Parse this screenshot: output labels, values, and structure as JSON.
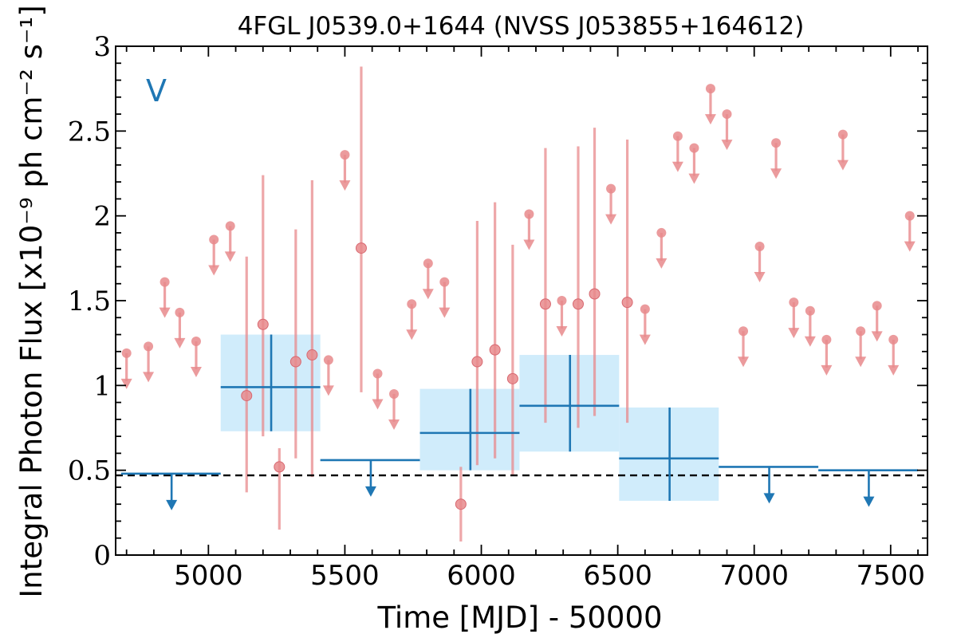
{
  "chart_data": {
    "type": "scatter",
    "title": "4FGL J0539.0+1644 (NVSS J053855+164612)",
    "xlabel": "Time [MJD] - 50000",
    "ylabel": "Integral Photon Flux [x10⁻⁹ ph cm⁻² s⁻¹]",
    "xlim": [
      4660,
      7635
    ],
    "ylim": [
      0,
      3
    ],
    "xticks": [
      5000,
      5500,
      6000,
      6500,
      7000,
      7500
    ],
    "xtick_labels": [
      "5000",
      "5500",
      "6000",
      "6500",
      "7000",
      "7500"
    ],
    "yticks": [
      0,
      0.5,
      1,
      1.5,
      2,
      2.5,
      3
    ],
    "ytick_labels": [
      "0",
      "0.5",
      "1",
      "1.5",
      "2",
      "2.5",
      "3"
    ],
    "annotation": "V",
    "reference_line": 0.47,
    "colors": {
      "short_bins": "#e8898c",
      "long_bins": "#1f77b4",
      "long_bin_box": "#d0ecfb",
      "reference_line": "#000000"
    },
    "short_bins_detections": [
      {
        "x": 5140,
        "y": 0.94,
        "ylo": 0.37,
        "yhi": 1.76
      },
      {
        "x": 5200,
        "y": 1.36,
        "ylo": 0.7,
        "yhi": 2.24
      },
      {
        "x": 5260,
        "y": 0.52,
        "ylo": 0.15,
        "yhi": 0.63
      },
      {
        "x": 5320,
        "y": 1.14,
        "ylo": 0.57,
        "yhi": 1.92
      },
      {
        "x": 5380,
        "y": 1.18,
        "ylo": 0.46,
        "yhi": 2.21
      },
      {
        "x": 5560,
        "y": 1.81,
        "ylo": 0.96,
        "yhi": 2.88
      },
      {
        "x": 5925,
        "y": 0.3,
        "ylo": 0.08,
        "yhi": 0.52
      },
      {
        "x": 5985,
        "y": 1.14,
        "ylo": 0.53,
        "yhi": 1.97
      },
      {
        "x": 6050,
        "y": 1.21,
        "ylo": 0.57,
        "yhi": 2.08
      },
      {
        "x": 6115,
        "y": 1.04,
        "ylo": 0.47,
        "yhi": 1.83
      },
      {
        "x": 6235,
        "y": 1.48,
        "ylo": 0.78,
        "yhi": 2.4
      },
      {
        "x": 6355,
        "y": 1.48,
        "ylo": 0.75,
        "yhi": 2.41
      },
      {
        "x": 6415,
        "y": 1.54,
        "ylo": 0.82,
        "yhi": 2.52
      },
      {
        "x": 6535,
        "y": 1.49,
        "ylo": 0.78,
        "yhi": 2.45
      }
    ],
    "short_bins_upper_limits": [
      {
        "x": 4700,
        "y": 1.19
      },
      {
        "x": 4780,
        "y": 1.23
      },
      {
        "x": 4840,
        "y": 1.61
      },
      {
        "x": 4895,
        "y": 1.43
      },
      {
        "x": 4955,
        "y": 1.26
      },
      {
        "x": 5020,
        "y": 1.86
      },
      {
        "x": 5080,
        "y": 1.94
      },
      {
        "x": 5440,
        "y": 1.15
      },
      {
        "x": 5500,
        "y": 2.36
      },
      {
        "x": 5620,
        "y": 1.07
      },
      {
        "x": 5680,
        "y": 0.95
      },
      {
        "x": 5745,
        "y": 1.48
      },
      {
        "x": 5805,
        "y": 1.72
      },
      {
        "x": 5865,
        "y": 1.61
      },
      {
        "x": 6175,
        "y": 2.01
      },
      {
        "x": 6295,
        "y": 1.5
      },
      {
        "x": 6475,
        "y": 2.16
      },
      {
        "x": 6600,
        "y": 1.45
      },
      {
        "x": 6660,
        "y": 1.9
      },
      {
        "x": 6720,
        "y": 2.47
      },
      {
        "x": 6780,
        "y": 2.4
      },
      {
        "x": 6840,
        "y": 2.75
      },
      {
        "x": 6900,
        "y": 2.6
      },
      {
        "x": 6960,
        "y": 1.32
      },
      {
        "x": 7020,
        "y": 1.82
      },
      {
        "x": 7080,
        "y": 2.43
      },
      {
        "x": 7145,
        "y": 1.49
      },
      {
        "x": 7205,
        "y": 1.44
      },
      {
        "x": 7265,
        "y": 1.27
      },
      {
        "x": 7325,
        "y": 2.48
      },
      {
        "x": 7390,
        "y": 1.32
      },
      {
        "x": 7450,
        "y": 1.47
      },
      {
        "x": 7510,
        "y": 1.27
      },
      {
        "x": 7570,
        "y": 2.0
      }
    ],
    "long_bins_detections": [
      {
        "x0": 5045,
        "x1": 5410,
        "y": 0.99,
        "ylo": 0.73,
        "yhi": 1.3,
        "xc": 5230
      },
      {
        "x0": 5775,
        "x1": 6140,
        "y": 0.72,
        "ylo": 0.5,
        "yhi": 0.98,
        "xc": 5960
      },
      {
        "x0": 6140,
        "x1": 6505,
        "y": 0.88,
        "ylo": 0.61,
        "yhi": 1.18,
        "xc": 6325
      },
      {
        "x0": 6505,
        "x1": 6870,
        "y": 0.57,
        "ylo": 0.32,
        "yhi": 0.87,
        "xc": 6690
      }
    ],
    "long_bins_upper_limits": [
      {
        "x0": 4680,
        "x1": 5045,
        "y": 0.48,
        "xc": 4865
      },
      {
        "x0": 5410,
        "x1": 5775,
        "y": 0.56,
        "xc": 5595
      },
      {
        "x0": 6870,
        "x1": 7235,
        "y": 0.52,
        "xc": 7055
      },
      {
        "x0": 7235,
        "x1": 7600,
        "y": 0.5,
        "xc": 7420
      }
    ]
  }
}
